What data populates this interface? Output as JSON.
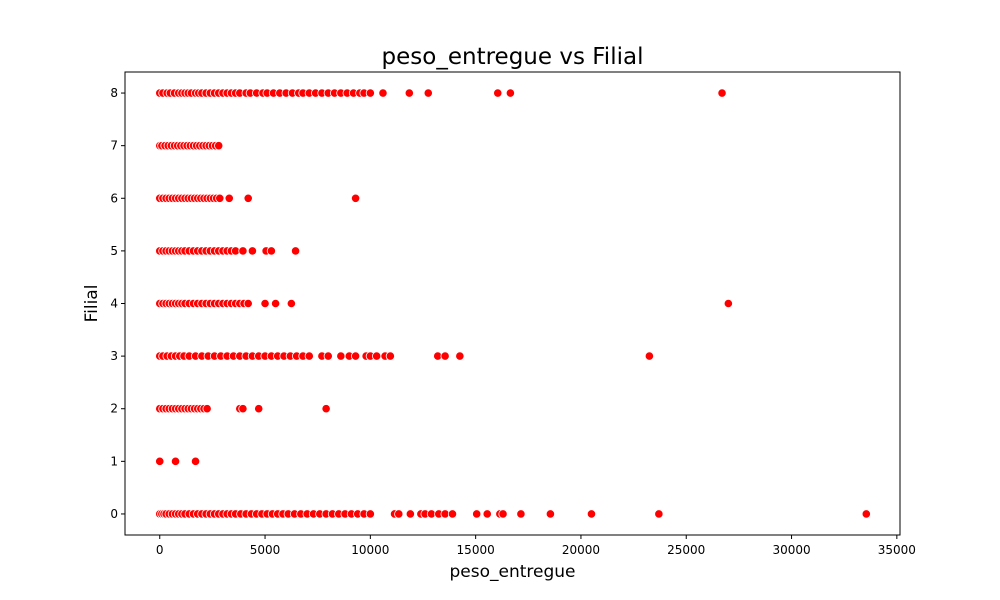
{
  "chart_data": {
    "type": "scatter",
    "title": "peso_entregue vs Filial",
    "xlabel": "peso_entregue",
    "ylabel": "Filial",
    "xlim": [
      -1650,
      35150
    ],
    "ylim": [
      -0.4,
      8.4
    ],
    "x_ticks": [
      0,
      5000,
      10000,
      15000,
      20000,
      25000,
      30000,
      35000
    ],
    "y_ticks": [
      0,
      1,
      2,
      3,
      4,
      5,
      6,
      7,
      8
    ],
    "grid": false,
    "legend": "none",
    "marker_color": "#ff0000",
    "marker_edge_color": "#ffffff",
    "series": [
      {
        "points": [
          [
            0,
            8
          ],
          [
            150,
            8
          ],
          [
            350,
            8
          ],
          [
            500,
            8
          ],
          [
            700,
            8
          ],
          [
            900,
            8
          ],
          [
            1050,
            8
          ],
          [
            1200,
            8
          ],
          [
            1350,
            8
          ],
          [
            1500,
            8
          ],
          [
            1700,
            8
          ],
          [
            1850,
            8
          ],
          [
            2000,
            8
          ],
          [
            2200,
            8
          ],
          [
            2400,
            8
          ],
          [
            2600,
            8
          ],
          [
            2800,
            8
          ],
          [
            3000,
            8
          ],
          [
            3200,
            8
          ],
          [
            3400,
            8
          ],
          [
            3600,
            8
          ],
          [
            3800,
            8
          ],
          [
            4100,
            8
          ],
          [
            4300,
            8
          ],
          [
            4600,
            8
          ],
          [
            4900,
            8
          ],
          [
            5100,
            8
          ],
          [
            5400,
            8
          ],
          [
            5700,
            8
          ],
          [
            6000,
            8
          ],
          [
            6300,
            8
          ],
          [
            6600,
            8
          ],
          [
            6800,
            8
          ],
          [
            7100,
            8
          ],
          [
            7400,
            8
          ],
          [
            7700,
            8
          ],
          [
            8000,
            8
          ],
          [
            8300,
            8
          ],
          [
            8600,
            8
          ],
          [
            8900,
            8
          ],
          [
            9200,
            8
          ],
          [
            9500,
            8
          ],
          [
            9700,
            8
          ],
          [
            10000,
            8
          ],
          [
            10600,
            8
          ],
          [
            11850,
            8
          ],
          [
            12750,
            8
          ],
          [
            16050,
            8
          ],
          [
            16650,
            8
          ],
          [
            26700,
            8
          ],
          [
            0,
            7
          ],
          [
            100,
            7
          ],
          [
            250,
            7
          ],
          [
            400,
            7
          ],
          [
            550,
            7
          ],
          [
            700,
            7
          ],
          [
            850,
            7
          ],
          [
            1000,
            7
          ],
          [
            1150,
            7
          ],
          [
            1300,
            7
          ],
          [
            1450,
            7
          ],
          [
            1600,
            7
          ],
          [
            1750,
            7
          ],
          [
            1900,
            7
          ],
          [
            2050,
            7
          ],
          [
            2200,
            7
          ],
          [
            2350,
            7
          ],
          [
            2500,
            7
          ],
          [
            2650,
            7
          ],
          [
            2800,
            7
          ],
          [
            0,
            6
          ],
          [
            150,
            6
          ],
          [
            300,
            6
          ],
          [
            450,
            6
          ],
          [
            600,
            6
          ],
          [
            750,
            6
          ],
          [
            900,
            6
          ],
          [
            1050,
            6
          ],
          [
            1200,
            6
          ],
          [
            1350,
            6
          ],
          [
            1500,
            6
          ],
          [
            1650,
            6
          ],
          [
            1800,
            6
          ],
          [
            1950,
            6
          ],
          [
            2100,
            6
          ],
          [
            2250,
            6
          ],
          [
            2400,
            6
          ],
          [
            2550,
            6
          ],
          [
            2700,
            6
          ],
          [
            2850,
            6
          ],
          [
            3300,
            6
          ],
          [
            4200,
            6
          ],
          [
            9300,
            6
          ],
          [
            0,
            5
          ],
          [
            150,
            5
          ],
          [
            300,
            5
          ],
          [
            450,
            5
          ],
          [
            600,
            5
          ],
          [
            750,
            5
          ],
          [
            900,
            5
          ],
          [
            1050,
            5
          ],
          [
            1200,
            5
          ],
          [
            1400,
            5
          ],
          [
            1600,
            5
          ],
          [
            1800,
            5
          ],
          [
            2000,
            5
          ],
          [
            2200,
            5
          ],
          [
            2400,
            5
          ],
          [
            2600,
            5
          ],
          [
            2800,
            5
          ],
          [
            3000,
            5
          ],
          [
            3200,
            5
          ],
          [
            3400,
            5
          ],
          [
            3600,
            5
          ],
          [
            3950,
            5
          ],
          [
            4400,
            5
          ],
          [
            5050,
            5
          ],
          [
            5300,
            5
          ],
          [
            6450,
            5
          ],
          [
            0,
            4
          ],
          [
            150,
            4
          ],
          [
            300,
            4
          ],
          [
            450,
            4
          ],
          [
            600,
            4
          ],
          [
            750,
            4
          ],
          [
            900,
            4
          ],
          [
            1050,
            4
          ],
          [
            1200,
            4
          ],
          [
            1400,
            4
          ],
          [
            1600,
            4
          ],
          [
            1800,
            4
          ],
          [
            2000,
            4
          ],
          [
            2200,
            4
          ],
          [
            2400,
            4
          ],
          [
            2600,
            4
          ],
          [
            2800,
            4
          ],
          [
            3000,
            4
          ],
          [
            3200,
            4
          ],
          [
            3400,
            4
          ],
          [
            3600,
            4
          ],
          [
            3800,
            4
          ],
          [
            4000,
            4
          ],
          [
            4200,
            4
          ],
          [
            5000,
            4
          ],
          [
            5500,
            4
          ],
          [
            6250,
            4
          ],
          [
            27000,
            4
          ],
          [
            0,
            3
          ],
          [
            150,
            3
          ],
          [
            350,
            3
          ],
          [
            550,
            3
          ],
          [
            750,
            3
          ],
          [
            950,
            3
          ],
          [
            1150,
            3
          ],
          [
            1400,
            3
          ],
          [
            1700,
            3
          ],
          [
            2000,
            3
          ],
          [
            2300,
            3
          ],
          [
            2600,
            3
          ],
          [
            2900,
            3
          ],
          [
            3200,
            3
          ],
          [
            3500,
            3
          ],
          [
            3800,
            3
          ],
          [
            4100,
            3
          ],
          [
            4400,
            3
          ],
          [
            4700,
            3
          ],
          [
            5000,
            3
          ],
          [
            5300,
            3
          ],
          [
            5600,
            3
          ],
          [
            5900,
            3
          ],
          [
            6200,
            3
          ],
          [
            6500,
            3
          ],
          [
            6800,
            3
          ],
          [
            7100,
            3
          ],
          [
            7700,
            3
          ],
          [
            8000,
            3
          ],
          [
            8600,
            3
          ],
          [
            9000,
            3
          ],
          [
            9300,
            3
          ],
          [
            9800,
            3
          ],
          [
            10000,
            3
          ],
          [
            10300,
            3
          ],
          [
            10700,
            3
          ],
          [
            10950,
            3
          ],
          [
            13200,
            3
          ],
          [
            13550,
            3
          ],
          [
            14250,
            3
          ],
          [
            23250,
            3
          ],
          [
            0,
            2
          ],
          [
            150,
            2
          ],
          [
            300,
            2
          ],
          [
            450,
            2
          ],
          [
            600,
            2
          ],
          [
            750,
            2
          ],
          [
            900,
            2
          ],
          [
            1050,
            2
          ],
          [
            1200,
            2
          ],
          [
            1350,
            2
          ],
          [
            1500,
            2
          ],
          [
            1650,
            2
          ],
          [
            1800,
            2
          ],
          [
            1950,
            2
          ],
          [
            2100,
            2
          ],
          [
            2250,
            2
          ],
          [
            3800,
            2
          ],
          [
            3950,
            2
          ],
          [
            4700,
            2
          ],
          [
            7900,
            2
          ],
          [
            0,
            1
          ],
          [
            750,
            1
          ],
          [
            1700,
            1
          ],
          [
            0,
            0
          ],
          [
            100,
            0
          ],
          [
            200,
            0
          ],
          [
            300,
            0
          ],
          [
            450,
            0
          ],
          [
            600,
            0
          ],
          [
            750,
            0
          ],
          [
            900,
            0
          ],
          [
            1050,
            0
          ],
          [
            1200,
            0
          ],
          [
            1400,
            0
          ],
          [
            1600,
            0
          ],
          [
            1800,
            0
          ],
          [
            2000,
            0
          ],
          [
            2200,
            0
          ],
          [
            2400,
            0
          ],
          [
            2600,
            0
          ],
          [
            2800,
            0
          ],
          [
            3000,
            0
          ],
          [
            3200,
            0
          ],
          [
            3400,
            0
          ],
          [
            3600,
            0
          ],
          [
            3850,
            0
          ],
          [
            4100,
            0
          ],
          [
            4350,
            0
          ],
          [
            4600,
            0
          ],
          [
            4850,
            0
          ],
          [
            5100,
            0
          ],
          [
            5350,
            0
          ],
          [
            5600,
            0
          ],
          [
            5850,
            0
          ],
          [
            6100,
            0
          ],
          [
            6400,
            0
          ],
          [
            6700,
            0
          ],
          [
            7000,
            0
          ],
          [
            7300,
            0
          ],
          [
            7600,
            0
          ],
          [
            7900,
            0
          ],
          [
            8200,
            0
          ],
          [
            8500,
            0
          ],
          [
            8800,
            0
          ],
          [
            9100,
            0
          ],
          [
            9400,
            0
          ],
          [
            9700,
            0
          ],
          [
            10000,
            0
          ],
          [
            11150,
            0
          ],
          [
            11350,
            0
          ],
          [
            11900,
            0
          ],
          [
            12400,
            0
          ],
          [
            12600,
            0
          ],
          [
            12900,
            0
          ],
          [
            13250,
            0
          ],
          [
            13550,
            0
          ],
          [
            13900,
            0
          ],
          [
            15050,
            0
          ],
          [
            15550,
            0
          ],
          [
            16150,
            0
          ],
          [
            16300,
            0
          ],
          [
            17150,
            0
          ],
          [
            18550,
            0
          ],
          [
            20500,
            0
          ],
          [
            23700,
            0
          ],
          [
            33550,
            0
          ]
        ]
      }
    ]
  }
}
